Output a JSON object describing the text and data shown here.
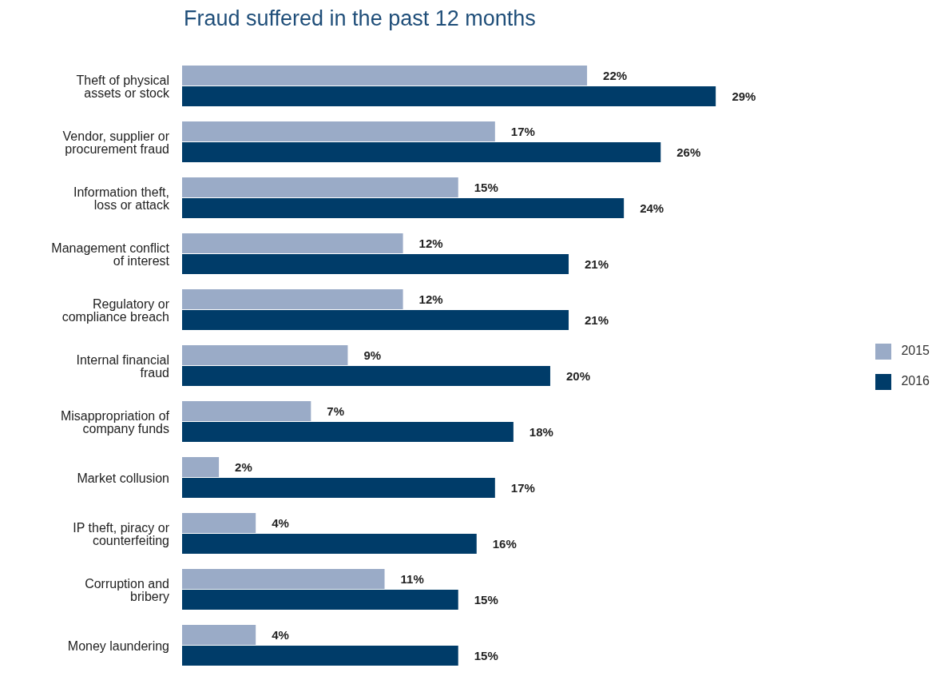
{
  "chart_data": {
    "type": "bar",
    "orientation": "horizontal",
    "title": "Fraud suffered in the past 12 months",
    "categories": [
      "Theft of physical assets or stock",
      "Vendor, supplier or procurement fraud",
      "Information theft, loss or attack",
      "Management conflict of interest",
      "Regulatory or compliance breach",
      "Internal financial fraud",
      "Misappropriation of company funds",
      "Market collusion",
      "IP theft, piracy or counterfeiting",
      "Corruption and bribery",
      "Money laundering"
    ],
    "series": [
      {
        "name": "2015",
        "color": "#9aabc7",
        "values": [
          22,
          17,
          15,
          12,
          12,
          9,
          7,
          2,
          4,
          11,
          4
        ],
        "value_labels": [
          "22%",
          "17%",
          "15%",
          "12%",
          "12%",
          "9%",
          "7%",
          "2%",
          "4%",
          "11%",
          "4%"
        ]
      },
      {
        "name": "2016",
        "color": "#003c69",
        "values": [
          29,
          26,
          24,
          21,
          21,
          20,
          18,
          17,
          16,
          15,
          15
        ],
        "value_labels": [
          "29%",
          "26%",
          "24%",
          "21%",
          "21%",
          "20%",
          "18%",
          "17%",
          "16%",
          "15%",
          "15%"
        ]
      }
    ],
    "legend": "right",
    "tick_labels": "y",
    "grid": false
  }
}
